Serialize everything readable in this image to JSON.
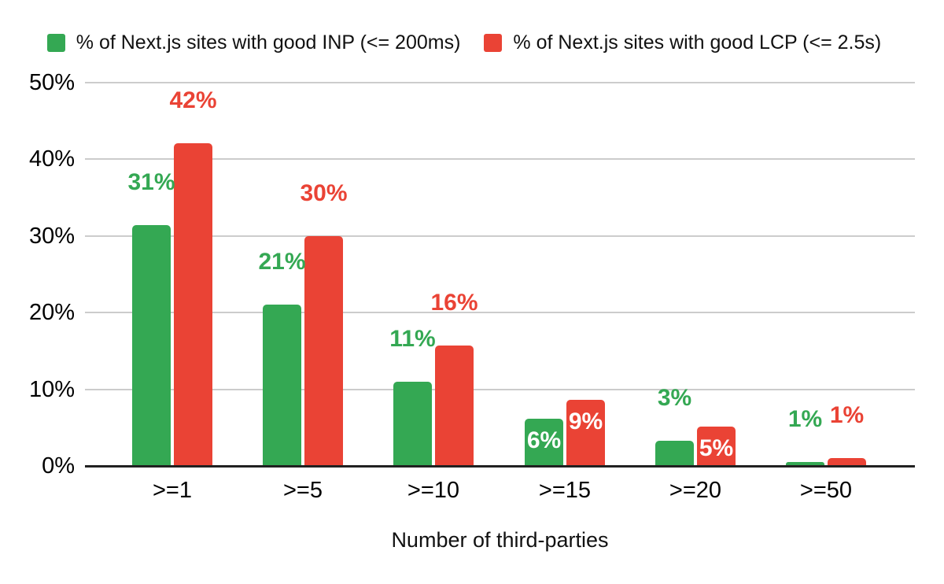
{
  "chart_data": {
    "type": "bar",
    "title": "",
    "xlabel": "Number of third-parties",
    "ylabel": "",
    "categories": [
      ">=1",
      ">=5",
      ">=10",
      ">=15",
      ">=20",
      ">=50"
    ],
    "series": [
      {
        "name": "% of Next.js sites with good INP (<= 200ms)",
        "color": "#34a853",
        "values": [
          31.4,
          21,
          11,
          6.2,
          3.3,
          0.5
        ],
        "labels": [
          "31%",
          "21%",
          "11%",
          "6%",
          "3%",
          "1%"
        ],
        "label_placement": [
          "above",
          "above",
          "above",
          "inside",
          "above",
          "above"
        ]
      },
      {
        "name": "% of Next.js sites with good LCP (<= 2.5s)",
        "color": "#ea4335",
        "values": [
          42,
          29.9,
          15.7,
          8.6,
          5.1,
          1
        ],
        "labels": [
          "42%",
          "30%",
          "16%",
          "9%",
          "5%",
          "1%"
        ],
        "label_placement": [
          "above",
          "above",
          "above",
          "inside",
          "inside",
          "above"
        ]
      }
    ],
    "yticks": [
      "0%",
      "10%",
      "20%",
      "30%",
      "40%",
      "50%"
    ],
    "ylim": [
      0,
      50
    ],
    "grid": true,
    "legend_position": "top",
    "inside_label_color": "#ffffff",
    "gridline_color": "#cccccc",
    "axis_line_color": "#212121"
  }
}
